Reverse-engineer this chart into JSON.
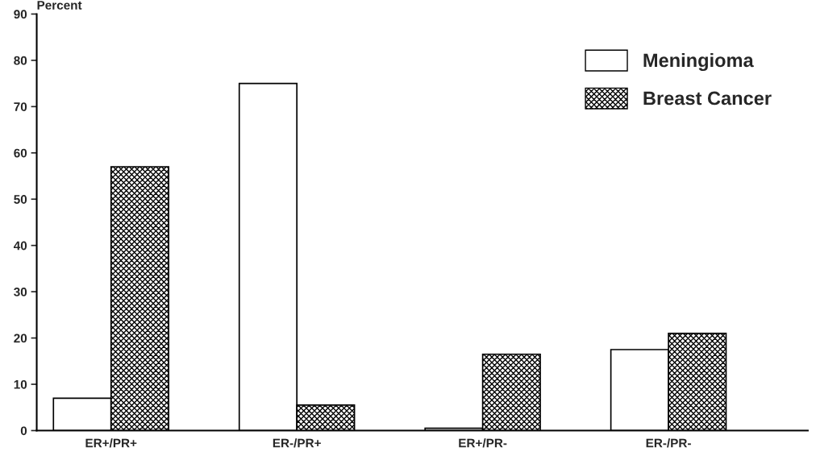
{
  "chart_data": {
    "type": "bar",
    "ylabel": "Percent",
    "categories": [
      "ER+/PR+",
      "ER-/PR+",
      "ER+/PR-",
      "ER-/PR-"
    ],
    "series": [
      {
        "name": "Meningioma",
        "color": "#ffffff",
        "values": [
          7,
          75,
          0.5,
          17.5
        ]
      },
      {
        "name": "Breast Cancer",
        "color": "#000000",
        "values": [
          57,
          5.5,
          16.5,
          21
        ]
      }
    ],
    "ylim": [
      0,
      90
    ],
    "yticks": [
      0,
      10,
      20,
      30,
      40,
      50,
      60,
      70,
      80,
      90
    ],
    "grid": false,
    "legend": "top right"
  }
}
